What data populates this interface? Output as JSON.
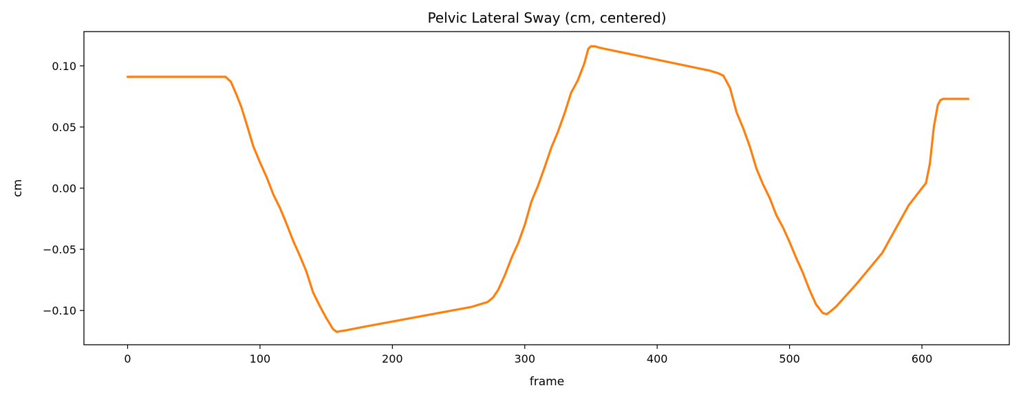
{
  "chart_data": {
    "type": "line",
    "title": "Pelvic Lateral Sway (cm, centered)",
    "xlabel": "frame",
    "ylabel": "cm",
    "xlim": [
      -33,
      666
    ],
    "ylim": [
      -0.128,
      0.128
    ],
    "xticks": [
      0,
      100,
      200,
      300,
      400,
      500,
      600
    ],
    "xtick_labels": [
      "0",
      "100",
      "200",
      "300",
      "400",
      "500",
      "600"
    ],
    "yticks": [
      -0.1,
      -0.05,
      0.0,
      0.05,
      0.1
    ],
    "ytick_labels": [
      "−0.10",
      "−0.05",
      "0.00",
      "0.05",
      "0.10"
    ],
    "grid": false,
    "legend": "none",
    "series": [
      {
        "color": "#ff7f0e",
        "x": [
          0,
          10,
          20,
          30,
          40,
          50,
          60,
          70,
          74,
          78,
          82,
          86,
          90,
          95,
          100,
          105,
          110,
          115,
          120,
          125,
          130,
          135,
          140,
          145,
          150,
          155,
          158,
          160,
          165,
          180,
          200,
          220,
          240,
          260,
          272,
          276,
          280,
          285,
          290,
          295,
          300,
          305,
          310,
          315,
          320,
          325,
          330,
          335,
          340,
          345,
          348,
          350,
          353,
          356,
          360,
          380,
          400,
          420,
          440,
          446,
          450,
          455,
          460,
          465,
          470,
          475,
          480,
          485,
          490,
          495,
          500,
          505,
          510,
          515,
          520,
          525,
          528,
          530,
          535,
          550,
          570,
          590,
          600,
          603,
          606,
          609,
          612,
          614,
          616,
          620,
          630,
          635
        ],
        "y": [
          0.091,
          0.091,
          0.091,
          0.091,
          0.091,
          0.091,
          0.091,
          0.091,
          0.091,
          0.087,
          0.077,
          0.066,
          0.052,
          0.034,
          0.021,
          0.009,
          -0.005,
          -0.016,
          -0.029,
          -0.043,
          -0.055,
          -0.068,
          -0.085,
          -0.096,
          -0.106,
          -0.115,
          -0.1175,
          -0.117,
          -0.1162,
          -0.113,
          -0.109,
          -0.105,
          -0.101,
          -0.097,
          -0.093,
          -0.0895,
          -0.083,
          -0.071,
          -0.057,
          -0.045,
          -0.03,
          -0.011,
          0.002,
          0.017,
          0.033,
          0.046,
          0.061,
          0.078,
          0.088,
          0.102,
          0.114,
          0.116,
          0.116,
          0.115,
          0.114,
          0.1095,
          0.105,
          0.1005,
          0.096,
          0.094,
          0.092,
          0.082,
          0.062,
          0.049,
          0.034,
          0.016,
          0.003,
          -0.008,
          -0.022,
          -0.032,
          -0.044,
          -0.057,
          -0.069,
          -0.083,
          -0.095,
          -0.102,
          -0.103,
          -0.1015,
          -0.097,
          -0.079,
          -0.053,
          -0.014,
          0.0,
          0.004,
          0.02,
          0.05,
          0.068,
          0.072,
          0.073,
          0.073,
          0.073,
          0.073
        ]
      }
    ]
  }
}
